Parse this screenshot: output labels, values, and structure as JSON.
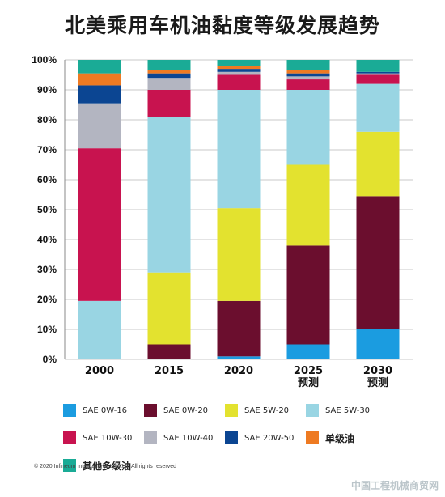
{
  "chart_data": {
    "type": "bar",
    "stacked": true,
    "title": "北美乘用车机油黏度等级发展趋势",
    "categories": [
      "2000",
      "2015",
      "2020",
      "2025\n预测",
      "2030\n预测"
    ],
    "ylim": [
      0,
      100
    ],
    "yticks": [
      "0%",
      "10%",
      "20%",
      "30%",
      "40%",
      "50%",
      "60%",
      "70%",
      "80%",
      "90%",
      "100%"
    ],
    "grid": true,
    "series": [
      {
        "name": "SAE 0W-16",
        "color": "#1b9ce0",
        "values": [
          0,
          0,
          1,
          5,
          10
        ]
      },
      {
        "name": "SAE 0W-20",
        "color": "#6b0e2e",
        "values": [
          0,
          5,
          18.5,
          33,
          44.5
        ]
      },
      {
        "name": "SAE 5W-20",
        "color": "#e3e22f",
        "values": [
          0,
          24,
          31,
          27,
          21.5
        ]
      },
      {
        "name": "SAE 5W-30",
        "color": "#99d5e3",
        "values": [
          19.5,
          52,
          39.5,
          25,
          16
        ]
      },
      {
        "name": "SAE 10W-30",
        "color": "#c8134f",
        "values": [
          51,
          9,
          5,
          3.5,
          3
        ]
      },
      {
        "name": "SAE 10W-40",
        "color": "#b3b5c1",
        "values": [
          15,
          4,
          1,
          1,
          0.5
        ]
      },
      {
        "name": "SAE 20W-50",
        "color": "#0b4592",
        "values": [
          6,
          1.5,
          1,
          1,
          0.5
        ]
      },
      {
        "name": "单级油",
        "color": "#ee7a22",
        "values": [
          4,
          1,
          1,
          1,
          0
        ]
      },
      {
        "name": "其他多级油",
        "color": "#1aab96",
        "values": [
          4.5,
          3.5,
          2,
          3.5,
          4
        ]
      }
    ]
  },
  "footer": {
    "copyright": "© 2020 Infineum International Limited. All rights reserved",
    "watermark": "中国工程机械商贸网"
  }
}
